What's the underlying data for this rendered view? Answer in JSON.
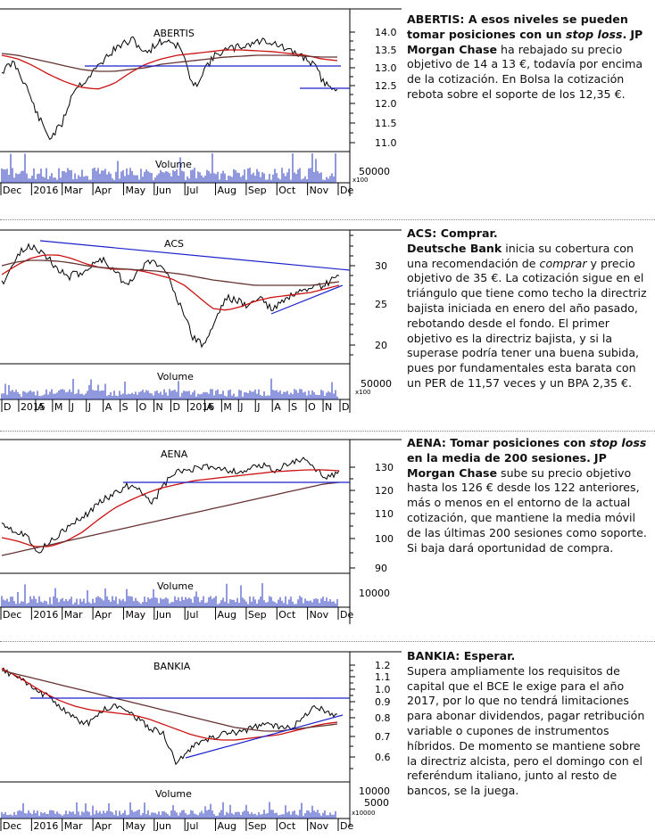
{
  "panels": [
    {
      "title": "ABERTIS",
      "headline_a": "ABERTIS: A esos niveles se pueden tomar posiciones con un ",
      "headline_em": "stop loss",
      "headline_b": ".",
      "body_strong": "JP Morgan Chase",
      "body": " ha rebajado su precio objetivo de 14 a 13 €, todavía por encima de la cotización. En Bolsa la cotización rebota sobre el soporte de los 12,35 €.",
      "volume_label": "Volume",
      "volume_tick": "50000",
      "volume_mult": "x100",
      "price_ticks": [
        "14.0",
        "13.5",
        "13.0",
        "12.5",
        "12.0",
        "11.5",
        "11.0"
      ],
      "x_labels": [
        "Dec",
        "2016",
        "Mar",
        "Apr",
        "May",
        "Jun",
        "Jul",
        "Aug",
        "Sep",
        "Oct",
        "Nov",
        "De"
      ]
    },
    {
      "title": "ACS",
      "headline_a": "ACS: Comprar.",
      "body_strong": "Deutsche Bank",
      "body_1": " inicia su cobertura con una recomendación de ",
      "body_em": "comprar",
      "body_2": " y precio objetivo de 35 €. La cotización sigue en el triángulo que tiene como techo la directriz bajista iniciada en enero del año pasado, rebotando desde el fondo. El primer objetivo es la directriz bajista, y si la superase podría tener una buena subida, pues por fundamentales esta barata con un PER de 11,57 veces y un BPA 2,35 €.",
      "volume_label": "Volume",
      "volume_tick": "50000",
      "volume_mult": "x100",
      "price_ticks": [
        "30",
        "25",
        "20"
      ],
      "x_labels": [
        "D",
        "2015",
        "A",
        "M",
        "J",
        "J",
        "A",
        "S",
        "O",
        "N",
        "D",
        "2016",
        "A",
        "M",
        "J",
        "J",
        "A",
        "S",
        "O",
        "N",
        "D"
      ]
    },
    {
      "title": "AENA",
      "headline_a": "AENA: Tomar posiciones con ",
      "headline_em": "stop loss",
      "headline_b": " en la media de 200 sesiones.",
      "body_strong": "JP Morgan Chase",
      "body": " sube su precio objetivo hasta los 126 € desde los 122 anteriores, más o menos en el entorno de la actual cotización, que mantiene la media móvil de las últimas 200 sesiones como soporte. Si baja dará oportunidad de compra.",
      "volume_label": "Volume",
      "volume_tick": "10000",
      "price_ticks": [
        "130",
        "120",
        "110",
        "100",
        "90"
      ],
      "x_labels": [
        "Dec",
        "2016",
        "Mar",
        "Apr",
        "May",
        "Jun",
        "Jul",
        "Aug",
        "Sep",
        "Oct",
        "Nov",
        "De"
      ]
    },
    {
      "title": "BANKIA",
      "headline_a": "BANKIA: Esperar.",
      "body": "Supera ampliamente los requisitos de capital que el BCE le exige para el año 2017, por lo que no tendrá limitaciones para abonar dividendos, pagar retribución variable o cupones de instrumentos híbridos. De momento se mantiene sobre la directriz alcista, pero el domingo con el referéndum italiano, junto al resto de bancos, se la juega.",
      "volume_label": "Volume",
      "volume_tick_1": "10000",
      "volume_tick_2": "5000",
      "volume_mult": "x10000",
      "price_ticks": [
        "1.2",
        "1.1",
        "1.0",
        "0.9",
        "0.8",
        "0.7",
        "0.6"
      ],
      "x_labels": [
        "Dec",
        "2016",
        "Mar",
        "Apr",
        "May",
        "Jun",
        "Jul",
        "Aug",
        "Sep",
        "Oct",
        "Nov",
        "De"
      ]
    }
  ],
  "colors": {
    "price": "#000000",
    "ma_red": "#cc1111",
    "ma_dark": "#663333",
    "trend_blue": "#1a22cc",
    "volume": "#2233bb",
    "grid": "#000000"
  }
}
